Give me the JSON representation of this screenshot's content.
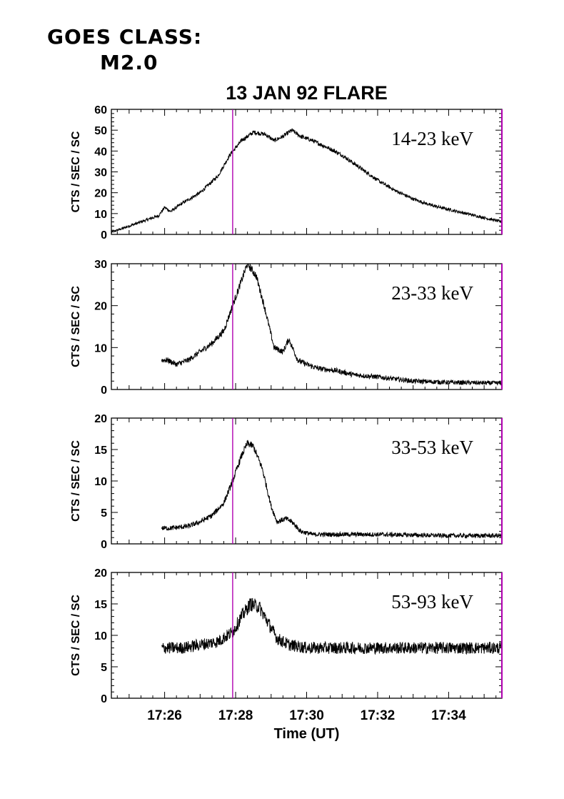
{
  "goes_class": {
    "line1": "GOES CLASS:",
    "line2": "M2.0"
  },
  "chart_data": [
    {
      "type": "line",
      "title": "13 JAN 92 FLARE",
      "annotation": "14-23 keV",
      "ylabel": "CTS / SEC / SC",
      "ylim": [
        0,
        60
      ],
      "yticks": [
        0,
        10,
        20,
        30,
        40,
        50,
        60
      ],
      "xlim": [
        "17:24:30",
        "17:35:30"
      ],
      "series": [
        {
          "x": [
            "17:24:30",
            "17:25:00",
            "17:25:30",
            "17:25:50",
            "17:26:00",
            "17:26:10",
            "17:26:30",
            "17:27:00",
            "17:27:30",
            "17:27:50",
            "17:28:10",
            "17:28:30",
            "17:28:50",
            "17:29:05",
            "17:29:20",
            "17:29:35",
            "17:29:50",
            "17:30:10",
            "17:30:40",
            "17:31:00",
            "17:31:30",
            "17:32:00",
            "17:32:30",
            "17:33:00",
            "17:33:30",
            "17:34:00",
            "17:34:30",
            "17:35:00",
            "17:35:30"
          ],
          "y": [
            1,
            4,
            7,
            9,
            13,
            11,
            15,
            20,
            28,
            38,
            45,
            49,
            48,
            45,
            47,
            50,
            47,
            45,
            41,
            38,
            32,
            26,
            21,
            17,
            14,
            12,
            10,
            8,
            6
          ],
          "noise": 0.8
        }
      ]
    },
    {
      "type": "line",
      "annotation": "23-33 keV",
      "ylabel": "CTS / SEC / SC",
      "ylim": [
        0,
        30
      ],
      "yticks": [
        0,
        10,
        20,
        30
      ],
      "xlim": [
        "17:24:30",
        "17:35:30"
      ],
      "series": [
        {
          "x": [
            "17:25:55",
            "17:26:05",
            "17:26:20",
            "17:26:40",
            "17:27:00",
            "17:27:20",
            "17:27:40",
            "17:27:55",
            "17:28:10",
            "17:28:20",
            "17:28:35",
            "17:28:50",
            "17:29:05",
            "17:29:20",
            "17:29:30",
            "17:29:45",
            "17:30:00",
            "17:30:20",
            "17:30:50",
            "17:31:20",
            "17:32:00",
            "17:32:30",
            "17:33:00",
            "17:34:00",
            "17:35:30"
          ],
          "y": [
            7,
            7,
            6,
            7,
            9,
            11,
            14,
            20,
            26,
            30,
            27,
            19,
            10,
            9,
            12,
            7,
            6,
            5,
            4.5,
            3.5,
            3,
            2.5,
            2,
            1.7,
            1.5
          ],
          "noise": 0.7
        }
      ]
    },
    {
      "type": "line",
      "annotation": "33-53 keV",
      "ylabel": "CTS / SEC / SC",
      "ylim": [
        0,
        20
      ],
      "yticks": [
        0,
        5,
        10,
        15,
        20
      ],
      "xlim": [
        "17:24:30",
        "17:35:30"
      ],
      "series": [
        {
          "x": [
            "17:25:55",
            "17:26:10",
            "17:26:40",
            "17:27:00",
            "17:27:20",
            "17:27:40",
            "17:27:55",
            "17:28:10",
            "17:28:20",
            "17:28:30",
            "17:28:45",
            "17:29:00",
            "17:29:10",
            "17:29:25",
            "17:29:35",
            "17:29:50",
            "17:30:10",
            "17:30:40",
            "17:32:00",
            "17:33:00",
            "17:34:00",
            "17:35:30"
          ],
          "y": [
            2.5,
            2.5,
            2.8,
            3.5,
            4.5,
            6.5,
            10,
            14,
            16,
            15.5,
            12,
            6,
            3.5,
            4,
            3.5,
            2,
            1.5,
            1.5,
            1.5,
            1.4,
            1.3,
            1.3
          ],
          "noise": 0.45
        }
      ]
    },
    {
      "type": "line",
      "annotation": "53-93 keV",
      "ylabel": "CTS / SEC / SC",
      "xlabel": "Time (UT)",
      "ylim": [
        0,
        20
      ],
      "yticks": [
        0,
        5,
        10,
        15,
        20
      ],
      "xlim": [
        "17:24:30",
        "17:35:30"
      ],
      "xticks": [
        "17:26",
        "17:28",
        "17:30",
        "17:32",
        "17:34"
      ],
      "series": [
        {
          "x": [
            "17:25:55",
            "17:26:30",
            "17:27:00",
            "17:27:30",
            "17:27:55",
            "17:28:10",
            "17:28:25",
            "17:28:40",
            "17:28:55",
            "17:29:10",
            "17:29:30",
            "17:30:00",
            "17:31:00",
            "17:32:00",
            "17:33:00",
            "17:34:00",
            "17:35:30"
          ],
          "y": [
            8,
            8,
            8.5,
            9,
            10.5,
            13,
            15,
            14.5,
            12,
            9.5,
            8.5,
            8,
            8,
            8,
            8,
            8,
            8
          ],
          "noise": 0.9
        }
      ]
    }
  ],
  "marker_time": "17:27:55",
  "colors": {
    "marker": "#b000b0",
    "line": "#000000"
  }
}
